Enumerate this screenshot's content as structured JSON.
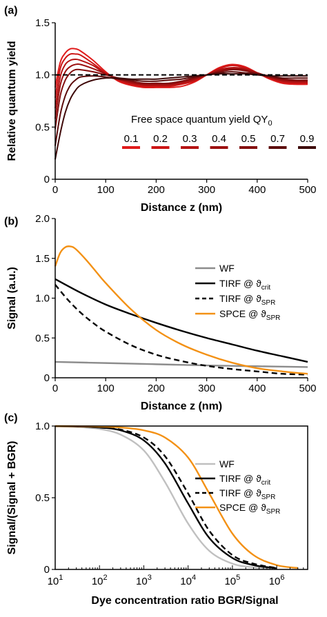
{
  "chart_data": [
    {
      "panel_label": "(a)",
      "type": "line",
      "xlabel": "Distance z (nm)",
      "ylabel": "Relative quantum yield",
      "xlim": [
        0,
        500
      ],
      "ylim": [
        0,
        1.5
      ],
      "xticks": [
        "0",
        "100",
        "200",
        "300",
        "400",
        "500"
      ],
      "yticks": [
        "0",
        "0.5",
        "1.0",
        "1.5"
      ],
      "reference_line": {
        "y": 1.0,
        "style": "dashed",
        "color": "#000000"
      },
      "legend_title": "Free space quantum yield QY",
      "legend_title_sub": "0",
      "series": [
        {
          "name": "0.1",
          "color": "#e01b1b",
          "x": [
            0,
            10,
            20,
            30,
            40,
            50,
            75,
            100,
            125,
            150,
            175,
            200,
            225,
            250,
            275,
            300,
            325,
            350,
            375,
            400,
            425,
            450,
            475,
            500
          ],
          "y": [
            0.88,
            1.12,
            1.21,
            1.25,
            1.25,
            1.23,
            1.14,
            1.03,
            0.94,
            0.9,
            0.88,
            0.88,
            0.88,
            0.89,
            0.93,
            1.0,
            1.07,
            1.1,
            1.08,
            1.02,
            0.96,
            0.92,
            0.91,
            0.91
          ]
        },
        {
          "name": "0.2",
          "color": "#cc1515",
          "x": [
            0,
            10,
            20,
            30,
            40,
            50,
            75,
            100,
            125,
            150,
            175,
            200,
            225,
            250,
            275,
            300,
            325,
            350,
            375,
            400,
            425,
            450,
            475,
            500
          ],
          "y": [
            0.78,
            1.06,
            1.16,
            1.2,
            1.2,
            1.19,
            1.11,
            1.02,
            0.95,
            0.91,
            0.89,
            0.89,
            0.89,
            0.91,
            0.94,
            1.0,
            1.06,
            1.09,
            1.07,
            1.02,
            0.97,
            0.93,
            0.92,
            0.92
          ]
        },
        {
          "name": "0.3",
          "color": "#b51212",
          "x": [
            0,
            10,
            20,
            30,
            40,
            50,
            75,
            100,
            125,
            150,
            175,
            200,
            225,
            250,
            275,
            300,
            325,
            350,
            375,
            400,
            425,
            450,
            475,
            500
          ],
          "y": [
            0.68,
            0.98,
            1.1,
            1.14,
            1.15,
            1.14,
            1.09,
            1.01,
            0.96,
            0.92,
            0.9,
            0.9,
            0.9,
            0.92,
            0.95,
            1.0,
            1.05,
            1.07,
            1.06,
            1.02,
            0.97,
            0.94,
            0.93,
            0.93
          ]
        },
        {
          "name": "0.4",
          "color": "#9c1010",
          "x": [
            0,
            10,
            20,
            30,
            40,
            50,
            75,
            100,
            125,
            150,
            175,
            200,
            225,
            250,
            275,
            300,
            325,
            350,
            375,
            400,
            425,
            450,
            475,
            500
          ],
          "y": [
            0.58,
            0.9,
            1.03,
            1.08,
            1.1,
            1.1,
            1.06,
            1.01,
            0.96,
            0.93,
            0.91,
            0.91,
            0.91,
            0.93,
            0.96,
            1.0,
            1.04,
            1.06,
            1.05,
            1.02,
            0.98,
            0.95,
            0.94,
            0.94
          ]
        },
        {
          "name": "0.5",
          "color": "#830d0d",
          "x": [
            0,
            10,
            20,
            30,
            40,
            50,
            75,
            100,
            125,
            150,
            175,
            200,
            225,
            250,
            275,
            300,
            325,
            350,
            375,
            400,
            425,
            450,
            475,
            500
          ],
          "y": [
            0.48,
            0.8,
            0.95,
            1.02,
            1.05,
            1.05,
            1.03,
            1.0,
            0.97,
            0.94,
            0.92,
            0.92,
            0.92,
            0.94,
            0.97,
            1.0,
            1.03,
            1.05,
            1.04,
            1.01,
            0.98,
            0.96,
            0.95,
            0.95
          ]
        },
        {
          "name": "0.7",
          "color": "#5c0a0a",
          "x": [
            0,
            10,
            20,
            30,
            40,
            50,
            75,
            100,
            125,
            150,
            175,
            200,
            225,
            250,
            275,
            300,
            325,
            350,
            375,
            400,
            425,
            450,
            475,
            500
          ],
          "y": [
            0.32,
            0.62,
            0.8,
            0.9,
            0.95,
            0.98,
            0.99,
            0.98,
            0.96,
            0.95,
            0.94,
            0.94,
            0.95,
            0.96,
            0.98,
            1.0,
            1.02,
            1.03,
            1.02,
            1.01,
            0.99,
            0.97,
            0.97,
            0.97
          ]
        },
        {
          "name": "0.9",
          "color": "#3d0707",
          "x": [
            0,
            10,
            20,
            30,
            40,
            50,
            75,
            100,
            125,
            150,
            175,
            200,
            225,
            250,
            275,
            300,
            325,
            350,
            375,
            400,
            425,
            450,
            475,
            500
          ],
          "y": [
            0.19,
            0.44,
            0.64,
            0.77,
            0.85,
            0.9,
            0.95,
            0.97,
            0.97,
            0.96,
            0.96,
            0.96,
            0.97,
            0.98,
            0.99,
            1.0,
            1.01,
            1.01,
            1.01,
            1.0,
            0.99,
            0.99,
            0.99,
            0.99
          ]
        }
      ]
    },
    {
      "panel_label": "(b)",
      "type": "line",
      "xlabel": "Distance z (nm)",
      "ylabel": "Signal (a.u.)",
      "xlim": [
        0,
        500
      ],
      "ylim": [
        0,
        2.0
      ],
      "xticks": [
        "0",
        "100",
        "200",
        "300",
        "400",
        "500"
      ],
      "yticks": [
        "0",
        "0.5",
        "1.0",
        "1.5",
        "2.0"
      ],
      "legend_placement": "right",
      "series": [
        {
          "name": "WF",
          "sub": "",
          "color": "#8c8c8c",
          "dash": "",
          "x": [
            0,
            100,
            200,
            300,
            400,
            500
          ],
          "y": [
            0.2,
            0.185,
            0.17,
            0.155,
            0.145,
            0.135
          ]
        },
        {
          "name": "TIRF  @ ϑ",
          "sub": "crit",
          "color": "#000000",
          "dash": "",
          "x": [
            0,
            50,
            100,
            150,
            200,
            250,
            300,
            350,
            400,
            450,
            500
          ],
          "y": [
            1.24,
            1.07,
            0.92,
            0.8,
            0.69,
            0.59,
            0.5,
            0.42,
            0.34,
            0.27,
            0.2
          ]
        },
        {
          "name": "TIRF  @ ϑ",
          "sub": "SPR",
          "color": "#000000",
          "dash": "8,5",
          "x": [
            0,
            25,
            50,
            75,
            100,
            150,
            200,
            250,
            300,
            350,
            400,
            450,
            500
          ],
          "y": [
            1.17,
            0.98,
            0.82,
            0.69,
            0.58,
            0.41,
            0.29,
            0.21,
            0.15,
            0.11,
            0.08,
            0.05,
            0.04
          ]
        },
        {
          "name": "SPCE @ ϑ",
          "sub": "SPR",
          "color": "#f39115",
          "dash": "",
          "x": [
            0,
            10,
            20,
            30,
            40,
            60,
            80,
            100,
            150,
            200,
            250,
            300,
            350,
            400,
            450,
            500
          ],
          "y": [
            1.4,
            1.57,
            1.64,
            1.65,
            1.62,
            1.49,
            1.34,
            1.19,
            0.86,
            0.6,
            0.42,
            0.29,
            0.19,
            0.12,
            0.08,
            0.05
          ]
        }
      ]
    },
    {
      "panel_label": "(c)",
      "type": "line",
      "xlabel": "Dye concentration ratio BGR/Signal",
      "ylabel": "Signal/(Signal + BGR)",
      "xscale": "log",
      "xlim": [
        10,
        5000000
      ],
      "ylim": [
        0,
        1.0
      ],
      "xticks": [
        {
          "base": "10",
          "exp": "1"
        },
        {
          "base": "10",
          "exp": "2"
        },
        {
          "base": "10",
          "exp": "3"
        },
        {
          "base": "10",
          "exp": "4"
        },
        {
          "base": "10",
          "exp": "5"
        },
        {
          "base": "10",
          "exp": "6"
        }
      ],
      "yticks": [
        "0",
        "0.5",
        "1.0"
      ],
      "legend_placement": "right",
      "series": [
        {
          "name": "WF",
          "sub": "",
          "color": "#c0c0c0",
          "dash": "",
          "x": [
            10,
            30,
            100,
            300,
            1000,
            3000,
            10000,
            30000,
            100000,
            300000,
            1000000
          ],
          "y": [
            0.998,
            0.994,
            0.98,
            0.94,
            0.83,
            0.61,
            0.32,
            0.13,
            0.04,
            0.015,
            0.004
          ]
        },
        {
          "name": "TIRF  @ ϑ",
          "sub": "crit",
          "color": "#000000",
          "dash": "",
          "x": [
            10,
            30,
            100,
            300,
            1000,
            3000,
            10000,
            30000,
            100000,
            300000,
            1000000
          ],
          "y": [
            0.999,
            0.997,
            0.99,
            0.97,
            0.9,
            0.74,
            0.46,
            0.22,
            0.08,
            0.03,
            0.008
          ]
        },
        {
          "name": "TIRF  @ ϑ",
          "sub": "SPR",
          "color": "#000000",
          "dash": "8,5",
          "x": [
            10,
            30,
            100,
            300,
            1000,
            3000,
            10000,
            30000,
            100000,
            300000,
            1000000
          ],
          "y": [
            0.999,
            0.998,
            0.99,
            0.975,
            0.92,
            0.79,
            0.53,
            0.27,
            0.1,
            0.04,
            0.01
          ]
        },
        {
          "name": "SPCE @ ϑ",
          "sub": "SPR",
          "color": "#f39115",
          "dash": "",
          "x": [
            10,
            30,
            100,
            300,
            1000,
            3000,
            10000,
            30000,
            100000,
            300000,
            1000000,
            3000000
          ],
          "y": [
            1.0,
            0.999,
            0.997,
            0.99,
            0.97,
            0.92,
            0.78,
            0.53,
            0.25,
            0.1,
            0.03,
            0.01
          ]
        }
      ]
    }
  ]
}
